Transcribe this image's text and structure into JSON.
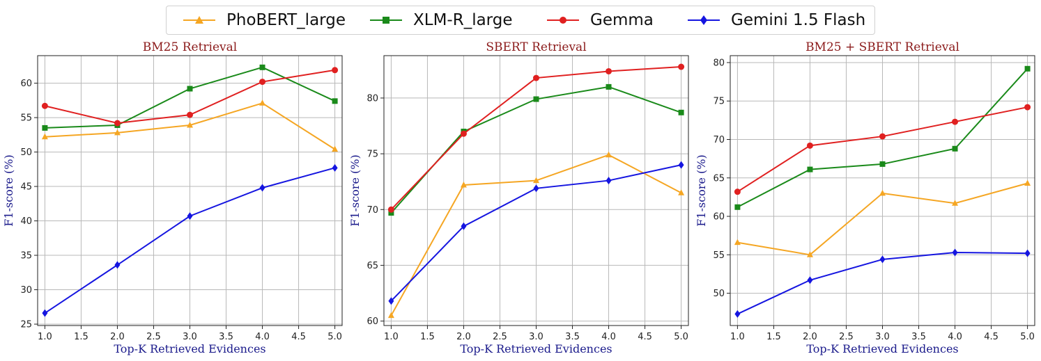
{
  "legend": {
    "items": [
      {
        "label": "PhoBERT_large",
        "color": "#f5a623",
        "marker": "triangle"
      },
      {
        "label": "XLM-R_large",
        "color": "#1a8a1a",
        "marker": "square"
      },
      {
        "label": "Gemma",
        "color": "#e02020",
        "marker": "circle"
      },
      {
        "label": "Gemini 1.5 Flash",
        "color": "#1515e0",
        "marker": "diamond"
      }
    ]
  },
  "chart_data": [
    {
      "type": "line",
      "title": "BM25 Retrieval",
      "xlabel": "Top-K Retrieved Evidences",
      "ylabel": "F1-score (%)",
      "x": [
        1.0,
        2.0,
        3.0,
        4.0,
        5.0
      ],
      "xlim": [
        0.9,
        5.1
      ],
      "ylim": [
        24.8,
        64.0
      ],
      "xticks": [
        1.0,
        1.5,
        2.0,
        2.5,
        3.0,
        3.5,
        4.0,
        4.5,
        5.0
      ],
      "yticks": [
        25,
        30,
        35,
        40,
        45,
        50,
        55,
        60
      ],
      "grid": true,
      "series": [
        {
          "name": "PhoBERT_large",
          "values": [
            52.2,
            52.8,
            53.9,
            57.1,
            50.4
          ]
        },
        {
          "name": "XLM-R_large",
          "values": [
            53.5,
            53.9,
            59.2,
            62.3,
            57.4
          ]
        },
        {
          "name": "Gemma",
          "values": [
            56.7,
            54.2,
            55.4,
            60.2,
            61.9
          ]
        },
        {
          "name": "Gemini 1.5 Flash",
          "values": [
            26.6,
            33.6,
            40.7,
            44.8,
            47.7
          ]
        }
      ]
    },
    {
      "type": "line",
      "title": "SBERT Retrieval",
      "xlabel": "Top-K Retrieved Evidences",
      "ylabel": "F1-score (%)",
      "x": [
        1.0,
        2.0,
        3.0,
        4.0,
        5.0
      ],
      "xlim": [
        0.9,
        5.1
      ],
      "ylim": [
        59.6,
        83.8
      ],
      "xticks": [
        1.0,
        1.5,
        2.0,
        2.5,
        3.0,
        3.5,
        4.0,
        4.5,
        5.0
      ],
      "yticks": [
        60,
        65,
        70,
        75,
        80
      ],
      "grid": true,
      "series": [
        {
          "name": "PhoBERT_large",
          "values": [
            60.5,
            72.2,
            72.6,
            74.9,
            71.5
          ]
        },
        {
          "name": "XLM-R_large",
          "values": [
            69.7,
            77.0,
            79.9,
            81.0,
            78.7
          ]
        },
        {
          "name": "Gemma",
          "values": [
            70.0,
            76.8,
            81.8,
            82.4,
            82.8
          ]
        },
        {
          "name": "Gemini 1.5 Flash",
          "values": [
            61.8,
            68.5,
            71.9,
            72.6,
            74.0
          ]
        }
      ]
    },
    {
      "type": "line",
      "title": "BM25 + SBERT Retrieval",
      "xlabel": "Top-K Retrieved Evidences",
      "ylabel": "F1-score (%)",
      "x": [
        1.0,
        2.0,
        3.0,
        4.0,
        5.0
      ],
      "xlim": [
        0.9,
        5.1
      ],
      "ylim": [
        45.8,
        80.9
      ],
      "xticks": [
        1.0,
        1.5,
        2.0,
        2.5,
        3.0,
        3.5,
        4.0,
        4.5,
        5.0
      ],
      "yticks": [
        50,
        55,
        60,
        65,
        70,
        75,
        80
      ],
      "grid": true,
      "series": [
        {
          "name": "PhoBERT_large",
          "values": [
            56.6,
            55.0,
            63.0,
            61.7,
            64.3
          ]
        },
        {
          "name": "XLM-R_large",
          "values": [
            61.2,
            66.1,
            66.8,
            68.8,
            79.2
          ]
        },
        {
          "name": "Gemma",
          "values": [
            63.2,
            69.2,
            70.4,
            72.3,
            74.2
          ]
        },
        {
          "name": "Gemini 1.5 Flash",
          "values": [
            47.3,
            51.7,
            54.4,
            55.3,
            55.2
          ]
        }
      ]
    }
  ]
}
